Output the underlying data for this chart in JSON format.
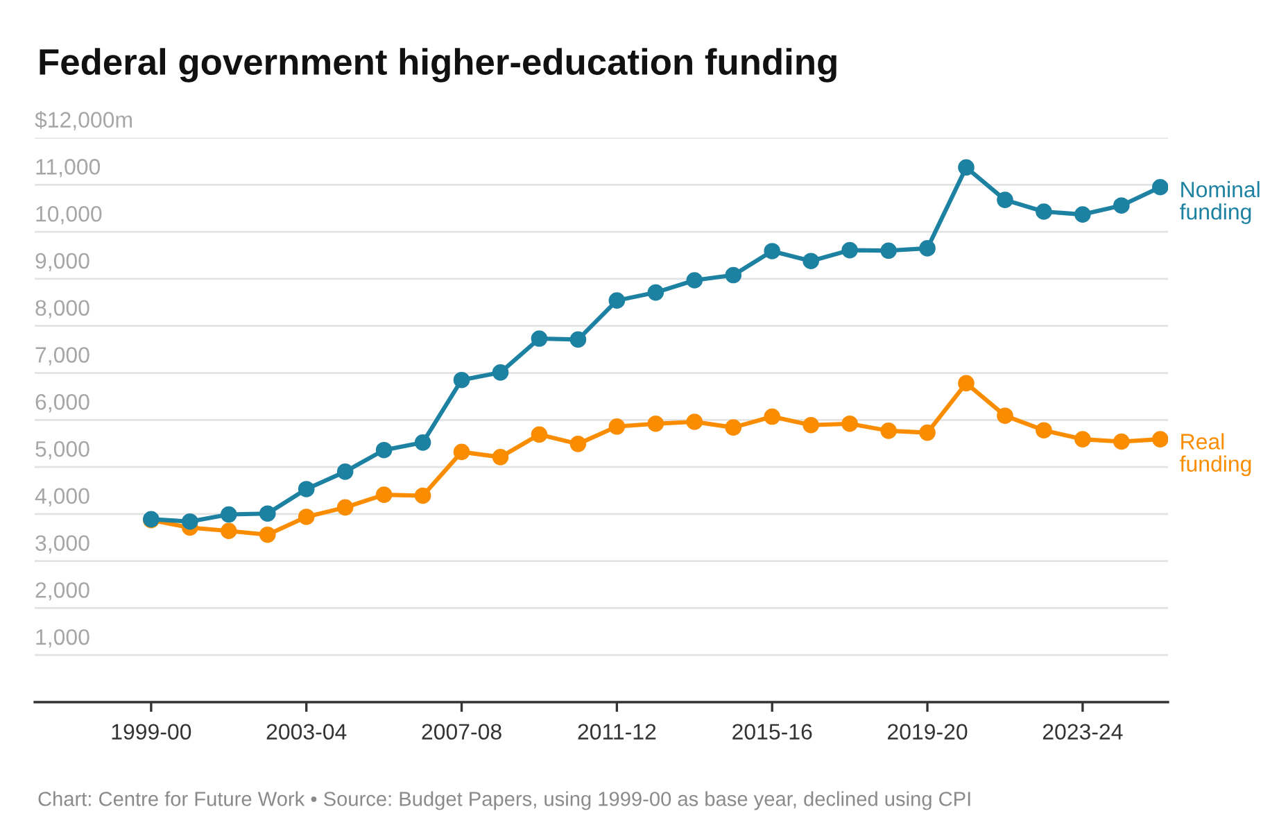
{
  "chart_data": {
    "type": "line",
    "title": "Federal government higher-education funding",
    "annotations": [
      "Chart: Centre for Future Work • Source: Budget Papers, using 1999-00 as base year, declined using CPI"
    ],
    "categories": [
      "1999-00",
      null,
      null,
      null,
      "2003-04",
      null,
      null,
      null,
      "2007-08",
      null,
      null,
      null,
      "2011-12",
      null,
      null,
      null,
      "2015-16",
      null,
      null,
      null,
      "2019-20",
      null,
      null,
      null,
      "2023-24",
      null,
      null
    ],
    "series": [
      {
        "name": "Nominal funding",
        "color": "#1d81a2",
        "values": [
          3890,
          3840,
          3990,
          4010,
          4530,
          4900,
          5360,
          5520,
          6850,
          7010,
          7730,
          7710,
          8540,
          8710,
          8970,
          9080,
          9590,
          9380,
          9610,
          9600,
          9650,
          11370,
          10680,
          10430,
          10370,
          10560,
          10950
        ]
      },
      {
        "name": "Real funding",
        "color": "#fa8c00",
        "values": [
          3870,
          3710,
          3640,
          3560,
          3940,
          4140,
          4410,
          4390,
          5320,
          5210,
          5690,
          5490,
          5860,
          5920,
          5960,
          5840,
          6070,
          5890,
          5920,
          5770,
          5730,
          6780,
          6090,
          5780,
          5590,
          5540,
          5590
        ]
      }
    ],
    "ylim": [
      0,
      12000
    ],
    "yticks": [
      {
        "value": 0,
        "label": null
      },
      {
        "value": 1000,
        "label": "1,000"
      },
      {
        "value": 2000,
        "label": "2,000"
      },
      {
        "value": 3000,
        "label": "3,000"
      },
      {
        "value": 4000,
        "label": "4,000"
      },
      {
        "value": 5000,
        "label": "5,000"
      },
      {
        "value": 6000,
        "label": "6,000"
      },
      {
        "value": 7000,
        "label": "7,000"
      },
      {
        "value": 8000,
        "label": "8,000"
      },
      {
        "value": 9000,
        "label": "9,000"
      },
      {
        "value": 10000,
        "label": "10,000"
      },
      {
        "value": 11000,
        "label": "11,000"
      },
      {
        "value": 12000,
        "label": "$12,000m"
      }
    ],
    "grid": "y",
    "legend": false,
    "marker": "circle",
    "line_style": "solid"
  }
}
